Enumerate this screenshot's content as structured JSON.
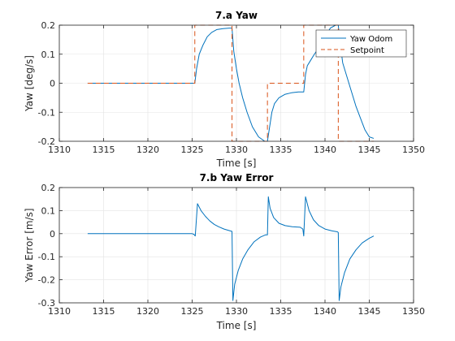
{
  "chart_data": [
    {
      "type": "line",
      "title": "7.a Yaw",
      "xlabel": "Time [s]",
      "ylabel": "Yaw [deg/s]",
      "xlim": [
        1310,
        1350
      ],
      "ylim": [
        -0.2,
        0.2
      ],
      "xticks": [
        1310,
        1315,
        1320,
        1325,
        1330,
        1335,
        1340,
        1345,
        1350
      ],
      "yticks": [
        -0.2,
        -0.1,
        0,
        0.1,
        0.2
      ],
      "xtick_labels": [
        "1310",
        "1315",
        "1320",
        "1325",
        "1330",
        "1335",
        "1340",
        "1345",
        "1350"
      ],
      "ytick_labels": [
        "-0.2",
        "-0.1",
        "0",
        "0.1",
        "0.2"
      ],
      "grid": true,
      "legend": "top-right",
      "series": [
        {
          "name": "Yaw Odom",
          "color": "#0072BD",
          "style": "solid",
          "x": [
            1313.2,
            1315,
            1317,
            1319,
            1321,
            1323,
            1325.3,
            1325.5,
            1325.8,
            1326.2,
            1326.7,
            1327.2,
            1327.8,
            1328.5,
            1329.2,
            1329.5,
            1329.7,
            1330,
            1330.3,
            1330.7,
            1331.2,
            1331.8,
            1332.5,
            1333.2,
            1333.5,
            1333.7,
            1334,
            1334.3,
            1334.8,
            1335.5,
            1336.2,
            1337,
            1337.6,
            1337.8,
            1338,
            1338.3,
            1338.8,
            1339.5,
            1340,
            1340.6,
            1341.2,
            1341.5,
            1341.7,
            1342,
            1342.5,
            1343,
            1343.5,
            1344,
            1344.5,
            1345,
            1345.5
          ],
          "y": [
            0,
            0,
            0,
            0,
            0,
            0,
            0,
            0.05,
            0.1,
            0.13,
            0.16,
            0.175,
            0.185,
            0.188,
            0.19,
            0.19,
            0.11,
            0.05,
            0,
            -0.05,
            -0.1,
            -0.15,
            -0.185,
            -0.2,
            -0.2,
            -0.16,
            -0.1,
            -0.07,
            -0.05,
            -0.038,
            -0.033,
            -0.03,
            -0.03,
            0.03,
            0.06,
            0.075,
            0.1,
            0.13,
            0.16,
            0.19,
            0.2,
            0.2,
            0.14,
            0.07,
            0.02,
            -0.03,
            -0.08,
            -0.12,
            -0.16,
            -0.185,
            -0.19
          ]
        },
        {
          "name": "Setpoint",
          "color": "#D95319",
          "style": "dashed",
          "x": [
            1313.2,
            1325.3,
            1325.3,
            1329.5,
            1329.5,
            1333.5,
            1333.5,
            1337.6,
            1337.6,
            1341.5,
            1341.5,
            1345.5
          ],
          "y": [
            0,
            0,
            0.2,
            0.2,
            -0.2,
            -0.2,
            0,
            0,
            0.2,
            0.2,
            -0.2,
            -0.2
          ]
        }
      ]
    },
    {
      "type": "line",
      "title": "7.b Yaw Error",
      "xlabel": "Time [s]",
      "ylabel": "Yaw Error [m/s]",
      "xlim": [
        1310,
        1350
      ],
      "ylim": [
        -0.3,
        0.2
      ],
      "xticks": [
        1310,
        1315,
        1320,
        1325,
        1330,
        1335,
        1340,
        1345,
        1350
      ],
      "yticks": [
        -0.3,
        -0.2,
        -0.1,
        0,
        0.1,
        0.2
      ],
      "xtick_labels": [
        "1310",
        "1315",
        "1320",
        "1325",
        "1330",
        "1335",
        "1340",
        "1345",
        "1350"
      ],
      "ytick_labels": [
        "-0.3",
        "-0.2",
        "-0.1",
        "0",
        "0.1",
        "0.2"
      ],
      "grid": true,
      "series": [
        {
          "color": "#0072BD",
          "style": "solid",
          "x": [
            1313.2,
            1317,
            1321,
            1325,
            1325.2,
            1325.35,
            1325.6,
            1326,
            1326.5,
            1327,
            1327.5,
            1328,
            1328.6,
            1329.3,
            1329.5,
            1329.6,
            1329.8,
            1330.2,
            1330.7,
            1331.3,
            1332,
            1332.7,
            1333.3,
            1333.5,
            1333.6,
            1333.8,
            1334.2,
            1334.8,
            1335.5,
            1336.3,
            1337.2,
            1337.5,
            1337.6,
            1337.8,
            1338.2,
            1338.7,
            1339.3,
            1340,
            1340.8,
            1341.4,
            1341.5,
            1341.6,
            1341.8,
            1342.2,
            1342.8,
            1343.5,
            1344.2,
            1345,
            1345.5
          ],
          "y": [
            0,
            0,
            0,
            0,
            -0.003,
            -0.01,
            0.13,
            0.1,
            0.075,
            0.055,
            0.04,
            0.03,
            0.02,
            0.012,
            0.01,
            -0.29,
            -0.22,
            -0.16,
            -0.11,
            -0.07,
            -0.035,
            -0.015,
            -0.005,
            -0.005,
            0.16,
            0.11,
            0.07,
            0.045,
            0.035,
            0.03,
            0.028,
            0.02,
            -0.01,
            0.16,
            0.1,
            0.06,
            0.035,
            0.02,
            0.012,
            0.008,
            0.005,
            -0.29,
            -0.23,
            -0.17,
            -0.11,
            -0.07,
            -0.04,
            -0.02,
            -0.01
          ]
        }
      ]
    }
  ]
}
